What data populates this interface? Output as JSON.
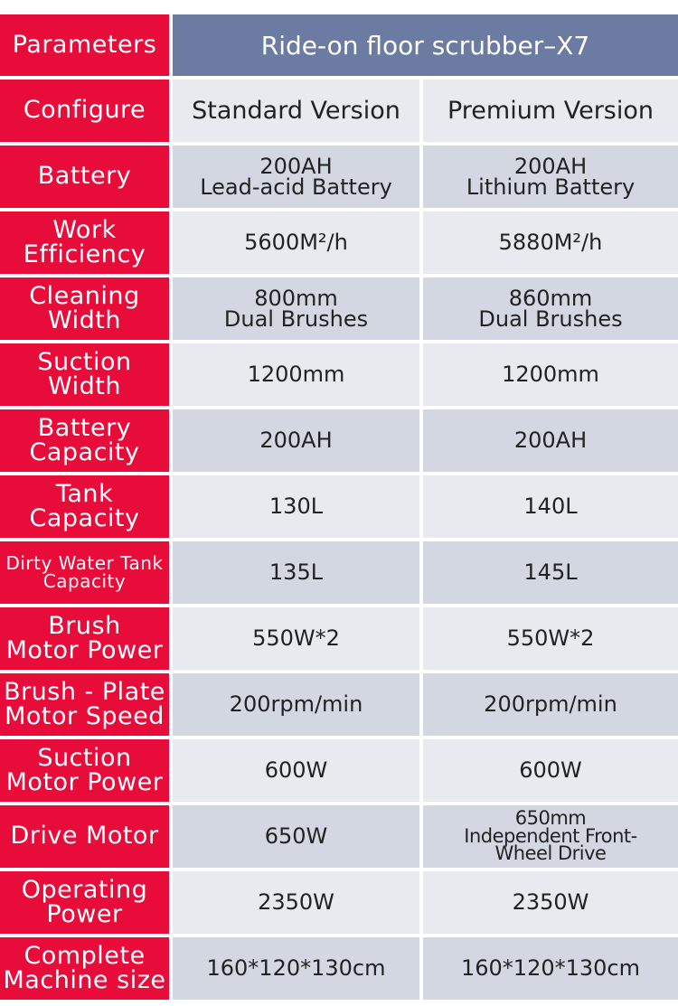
{
  "header": {
    "parameters_label": "Parameters",
    "title": "Ride-on floor scrubber–X7"
  },
  "colors": {
    "param_bg": "#e80c3a",
    "title_bg": "#6b7ba1",
    "row_light": "#e9eaef",
    "row_dark": "#d3d7e2"
  },
  "rows": [
    {
      "param": "Configure",
      "standard": "Standard Version",
      "premium": "Premium Version"
    },
    {
      "param": "Battery",
      "standard": "200AH\nLead-acid Battery",
      "premium": "200AH\nLithium Battery"
    },
    {
      "param": "Work\nEfficiency",
      "standard": "5600M²/h",
      "premium": "5880M²/h"
    },
    {
      "param": "Cleaning\nWidth",
      "standard": "800mm\nDual Brushes",
      "premium": "860mm\nDual Brushes"
    },
    {
      "param": "Suction\nWidth",
      "standard": "1200mm",
      "premium": "1200mm"
    },
    {
      "param": "Battery\nCapacity",
      "standard": "200AH",
      "premium": "200AH"
    },
    {
      "param": "Tank\nCapacity",
      "standard": "130L",
      "premium": "140L"
    },
    {
      "param": "Dirty Water Tank\nCapacity",
      "standard": "135L",
      "premium": "145L"
    },
    {
      "param": "Brush\nMotor Power",
      "standard": "550W*2",
      "premium": "550W*2"
    },
    {
      "param": "Brush - Plate\nMotor Speed",
      "standard": "200rpm/min",
      "premium": "200rpm/min"
    },
    {
      "param": "Suction\nMotor Power",
      "standard": "600W",
      "premium": "600W"
    },
    {
      "param": "Drive Motor",
      "standard": "650W",
      "premium": "650mm\nIndependent Front-\nWheel Drive"
    },
    {
      "param": "Operating\nPower",
      "standard": "2350W",
      "premium": "2350W"
    },
    {
      "param": "Complete\nMachine size",
      "standard": "160*120*130cm",
      "premium": "160*120*130cm"
    }
  ]
}
